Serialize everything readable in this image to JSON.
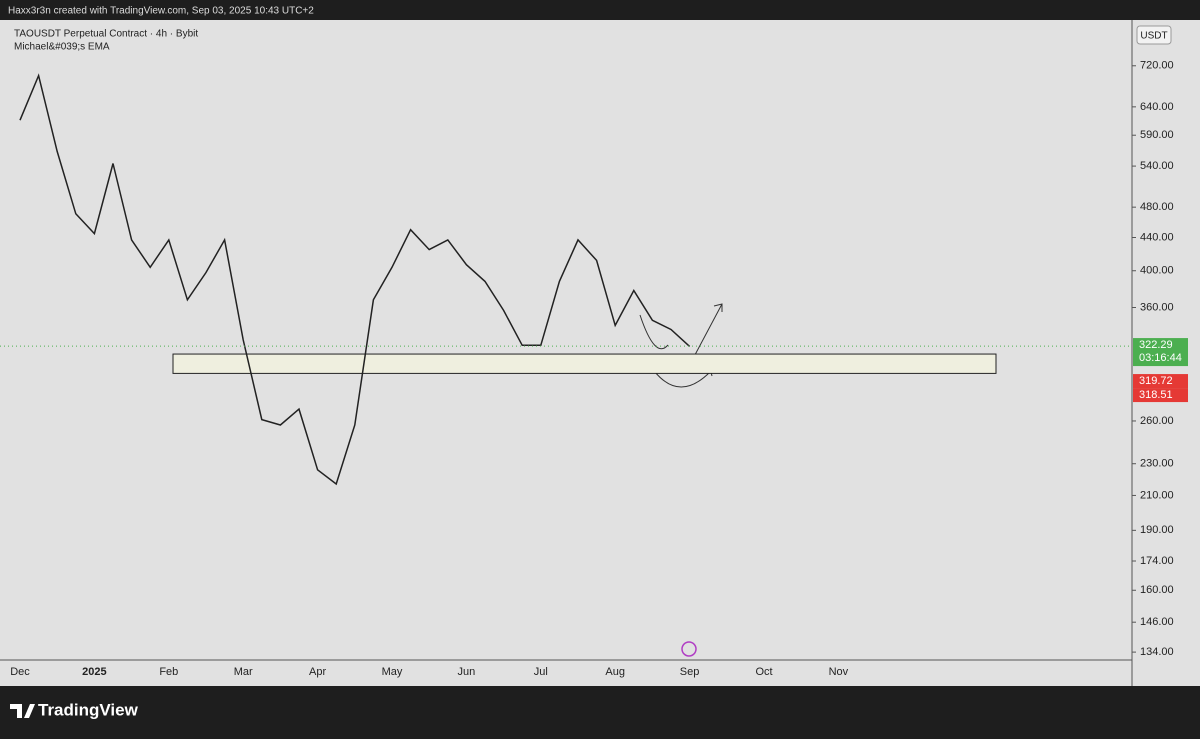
{
  "ui": {
    "watermark": "Haxx3r3n created with TradingView.com, Sep 03, 2025 10:43 UTC+2",
    "currency_button": "USDT",
    "brand": "TradingView"
  },
  "chart_data": {
    "type": "line",
    "title": "TAOUSDT Perpetual Contract · 4h · Bybit",
    "subtitle": "Michael&#039;s EMA",
    "categories": [
      "Dec",
      null,
      null,
      null,
      "2025",
      null,
      null,
      null,
      "Feb",
      null,
      null,
      null,
      "Mar",
      null,
      null,
      null,
      "Apr",
      null,
      null,
      null,
      "May",
      null,
      null,
      null,
      "Jun",
      null,
      null,
      null,
      "Jul",
      null,
      null,
      null,
      "Aug",
      null,
      null,
      null,
      "Sep",
      null,
      null,
      null,
      "Oct",
      null,
      null,
      null,
      "Nov",
      null,
      null,
      null
    ],
    "values": [
      616,
      700,
      563,
      471,
      445,
      544,
      437,
      404,
      437,
      368,
      398,
      437,
      328,
      261,
      257,
      269,
      226,
      217,
      257,
      368,
      404,
      450,
      425,
      437,
      407,
      388,
      357,
      323,
      323,
      388,
      437,
      412,
      342,
      378,
      347,
      338,
      322,
      null,
      null,
      null,
      null,
      null,
      null,
      null,
      null,
      null,
      null,
      null
    ],
    "color": "#222222",
    "log_y": true,
    "grid": false,
    "ylim": [
      131,
      821
    ],
    "yticks": [
      {
        "value": 720,
        "label": "720.00"
      },
      {
        "value": 640,
        "label": "640.00"
      },
      {
        "value": 590,
        "label": "590.00"
      },
      {
        "value": 540,
        "label": "540.00"
      },
      {
        "value": 480,
        "label": "480.00"
      },
      {
        "value": 440,
        "label": "440.00"
      },
      {
        "value": 400,
        "label": "400.00"
      },
      {
        "value": 360,
        "label": "360.00"
      },
      {
        "value": 260,
        "label": "260.00"
      },
      {
        "value": 230,
        "label": "230.00"
      },
      {
        "value": 210,
        "label": "210.00"
      },
      {
        "value": 190,
        "label": "190.00"
      },
      {
        "value": 174,
        "label": "174.00"
      },
      {
        "value": 160,
        "label": "160.00"
      },
      {
        "value": 146,
        "label": "146.00"
      },
      {
        "value": 134,
        "label": "134.00"
      }
    ],
    "last_price": 322.29,
    "countdown": "03:16:44",
    "price_badges": [
      319.72,
      318.51
    ],
    "zone": {
      "low": 298,
      "high": 315
    }
  }
}
